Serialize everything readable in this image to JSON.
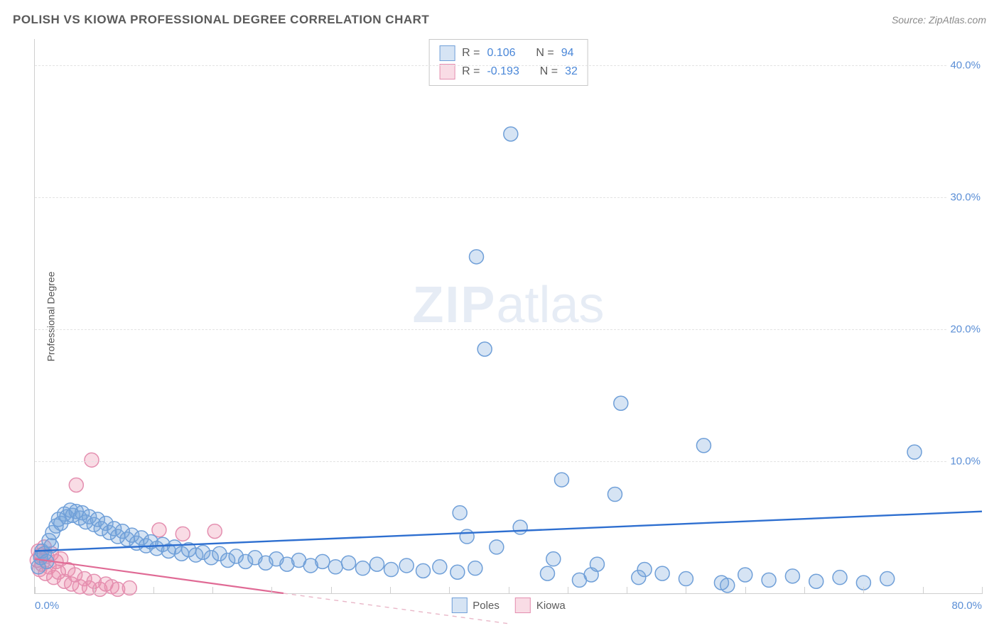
{
  "header": {
    "title": "POLISH VS KIOWA PROFESSIONAL DEGREE CORRELATION CHART",
    "source_prefix": "Source: ",
    "source_name": "ZipAtlas.com"
  },
  "yaxis": {
    "label": "Professional Degree"
  },
  "watermark": {
    "zip": "ZIP",
    "rest": "atlas"
  },
  "chart": {
    "type": "scatter",
    "xlim": [
      0,
      80
    ],
    "ylim": [
      0,
      42
    ],
    "xticks": [
      0,
      5,
      10,
      15,
      20,
      25,
      30,
      35,
      40,
      45,
      50,
      55,
      60,
      65,
      70,
      75,
      80
    ],
    "yticks": [
      10,
      20,
      30,
      40
    ],
    "ytick_labels": [
      "10.0%",
      "20.0%",
      "30.0%",
      "40.0%"
    ],
    "xmin_label": "0.0%",
    "xmax_label": "80.0%",
    "grid_color": "#e3e3e3",
    "axis_color": "#cfcfcf",
    "background": "#ffffff",
    "marker_radius": 10,
    "marker_stroke_width": 1.5,
    "series": {
      "poles": {
        "label": "Poles",
        "fill": "rgba(120,165,220,0.30)",
        "stroke": "#6f9fd8",
        "R": "0.106",
        "N": "94",
        "trend": {
          "x1": 0,
          "y1": 3.2,
          "x2": 80,
          "y2": 6.2,
          "color": "#2e6fd0",
          "width": 2.4,
          "dash": ""
        },
        "points": [
          [
            0.3,
            2.0
          ],
          [
            0.5,
            2.7
          ],
          [
            0.6,
            3.2
          ],
          [
            0.8,
            3.0
          ],
          [
            1.0,
            2.4
          ],
          [
            1.2,
            4.0
          ],
          [
            1.4,
            3.6
          ],
          [
            1.5,
            4.6
          ],
          [
            1.8,
            5.1
          ],
          [
            2.0,
            5.6
          ],
          [
            2.2,
            5.3
          ],
          [
            2.5,
            6.0
          ],
          [
            2.7,
            5.8
          ],
          [
            3.0,
            6.3
          ],
          [
            3.2,
            5.9
          ],
          [
            3.5,
            6.2
          ],
          [
            3.8,
            5.7
          ],
          [
            4.0,
            6.1
          ],
          [
            4.3,
            5.4
          ],
          [
            4.6,
            5.8
          ],
          [
            5.0,
            5.2
          ],
          [
            5.3,
            5.6
          ],
          [
            5.6,
            4.9
          ],
          [
            6.0,
            5.3
          ],
          [
            6.3,
            4.6
          ],
          [
            6.7,
            4.9
          ],
          [
            7.0,
            4.3
          ],
          [
            7.4,
            4.7
          ],
          [
            7.8,
            4.1
          ],
          [
            8.2,
            4.4
          ],
          [
            8.6,
            3.8
          ],
          [
            9.0,
            4.2
          ],
          [
            9.4,
            3.6
          ],
          [
            9.8,
            3.9
          ],
          [
            10.3,
            3.4
          ],
          [
            10.8,
            3.7
          ],
          [
            11.3,
            3.2
          ],
          [
            11.8,
            3.5
          ],
          [
            12.4,
            3.0
          ],
          [
            13.0,
            3.3
          ],
          [
            13.6,
            2.9
          ],
          [
            14.2,
            3.1
          ],
          [
            14.9,
            2.7
          ],
          [
            15.6,
            3.0
          ],
          [
            16.3,
            2.5
          ],
          [
            17.0,
            2.8
          ],
          [
            17.8,
            2.4
          ],
          [
            18.6,
            2.7
          ],
          [
            19.5,
            2.3
          ],
          [
            20.4,
            2.6
          ],
          [
            21.3,
            2.2
          ],
          [
            22.3,
            2.5
          ],
          [
            23.3,
            2.1
          ],
          [
            24.3,
            2.4
          ],
          [
            25.4,
            2.0
          ],
          [
            26.5,
            2.3
          ],
          [
            27.7,
            1.9
          ],
          [
            28.9,
            2.2
          ],
          [
            30.1,
            1.8
          ],
          [
            31.4,
            2.1
          ],
          [
            32.8,
            1.7
          ],
          [
            34.2,
            2.0
          ],
          [
            35.7,
            1.6
          ],
          [
            37.2,
            1.9
          ],
          [
            35.9,
            6.1
          ],
          [
            37.3,
            25.5
          ],
          [
            40.2,
            34.8
          ],
          [
            38.0,
            18.5
          ],
          [
            41.0,
            5.0
          ],
          [
            43.3,
            1.5
          ],
          [
            44.5,
            8.6
          ],
          [
            46.0,
            1.0
          ],
          [
            47.0,
            1.4
          ],
          [
            49.0,
            7.5
          ],
          [
            49.5,
            14.4
          ],
          [
            51.0,
            1.2
          ],
          [
            53.0,
            1.5
          ],
          [
            55.0,
            1.1
          ],
          [
            56.5,
            11.2
          ],
          [
            58.0,
            0.8
          ],
          [
            60.0,
            1.4
          ],
          [
            62.0,
            1.0
          ],
          [
            64.0,
            1.3
          ],
          [
            66.0,
            0.9
          ],
          [
            68.0,
            1.2
          ],
          [
            70.0,
            0.8
          ],
          [
            72.0,
            1.1
          ],
          [
            74.3,
            10.7
          ],
          [
            58.5,
            0.6
          ],
          [
            51.5,
            1.8
          ],
          [
            47.5,
            2.2
          ],
          [
            43.8,
            2.6
          ],
          [
            39.0,
            3.5
          ],
          [
            36.5,
            4.3
          ]
        ]
      },
      "kiowa": {
        "label": "Kiowa",
        "fill": "rgba(235,140,170,0.30)",
        "stroke": "#e48fb0",
        "R": "-0.193",
        "N": "32",
        "trend": {
          "x1": 0,
          "y1": 2.6,
          "x2": 21,
          "y2": 0.0,
          "color": "#e06a95",
          "width": 2.2,
          "dash": ""
        },
        "trend_ext": {
          "x1": 21,
          "y1": 0.0,
          "x2": 40,
          "y2": -2.3,
          "color": "#e9b7c8",
          "width": 1.4,
          "dash": "6 6"
        },
        "points": [
          [
            0.2,
            2.5
          ],
          [
            0.3,
            3.2
          ],
          [
            0.4,
            1.8
          ],
          [
            0.5,
            2.9
          ],
          [
            0.6,
            2.2
          ],
          [
            0.8,
            3.5
          ],
          [
            0.9,
            1.5
          ],
          [
            1.0,
            2.8
          ],
          [
            1.2,
            2.0
          ],
          [
            1.4,
            3.0
          ],
          [
            1.6,
            1.2
          ],
          [
            1.8,
            2.4
          ],
          [
            2.0,
            1.6
          ],
          [
            2.2,
            2.6
          ],
          [
            2.5,
            0.9
          ],
          [
            2.8,
            1.8
          ],
          [
            3.1,
            0.7
          ],
          [
            3.4,
            1.4
          ],
          [
            3.8,
            0.5
          ],
          [
            4.2,
            1.1
          ],
          [
            4.6,
            0.4
          ],
          [
            5.0,
            0.9
          ],
          [
            5.5,
            0.3
          ],
          [
            6.0,
            0.7
          ],
          [
            4.8,
            10.1
          ],
          [
            6.5,
            0.5
          ],
          [
            7.0,
            0.3
          ],
          [
            3.5,
            8.2
          ],
          [
            8.0,
            0.4
          ],
          [
            10.5,
            4.8
          ],
          [
            12.5,
            4.5
          ],
          [
            15.2,
            4.7
          ]
        ]
      }
    }
  },
  "legend": {
    "r_label": "R  =",
    "n_label": "N  ="
  }
}
